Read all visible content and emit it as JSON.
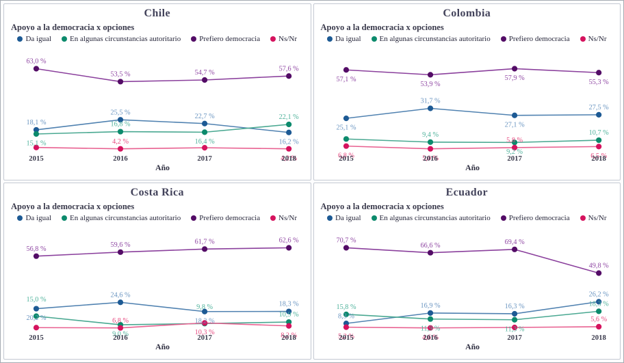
{
  "palette": {
    "da_igual": {
      "line": "#4f81b0",
      "dot": "#1d5a94",
      "label": "#6a95c1"
    },
    "autoritario": {
      "line": "#49a891",
      "dot": "#0c8a6c",
      "label": "#4fb29b"
    },
    "democracia": {
      "line": "#8a3f9c",
      "dot": "#530c66",
      "label": "#8f47a3"
    },
    "nsnr": {
      "line": "#e86090",
      "dot": "#d5135e",
      "label": "#e7487f"
    }
  },
  "series_names": {
    "da_igual": "Da igual",
    "autoritario": "En algunas circunstancias autoritario",
    "democracia": "Prefiero democracia",
    "nsnr": "Ns/Nr"
  },
  "chart_data": [
    {
      "type": "line",
      "title": "Chile",
      "subtitle": "Apoyo a la democracia x opciones",
      "x": [
        "2015",
        "2016",
        "2017",
        "2018"
      ],
      "xlabel": "Año",
      "legend_position": "top",
      "grid": false,
      "series": [
        {
          "key": "democracia",
          "name": "Prefiero democracia",
          "values": [
            63.0,
            53.5,
            54.7,
            57.6
          ],
          "labels": [
            "63,0 %",
            "53,5 %",
            "54,7 %",
            "57,6 %"
          ],
          "label_pos": [
            "a",
            "a",
            "a",
            "a"
          ]
        },
        {
          "key": "da_igual",
          "name": "Da igual",
          "values": [
            18.1,
            25.5,
            22.7,
            16.2
          ],
          "labels": [
            "18,1 %",
            "25,5 %",
            "22,7 %",
            "16,2 %"
          ],
          "label_pos": [
            "a",
            "a",
            "a",
            "b"
          ]
        },
        {
          "key": "autoritario",
          "name": "En algunas circunstancias autoritario",
          "values": [
            15.1,
            16.8,
            16.4,
            22.1
          ],
          "labels": [
            "15,1 %",
            "16,8 %",
            "16,4 %",
            "22,1 %"
          ],
          "label_pos": [
            "b",
            "a",
            "b",
            "a"
          ]
        },
        {
          "key": "nsnr",
          "name": "Ns/Nr",
          "values": [
            5.2,
            4.2,
            5.0,
            4.2
          ],
          "labels": [
            null,
            "4,2 %",
            null,
            "4,2 %"
          ],
          "label_pos": [
            null,
            "a",
            null,
            "b"
          ]
        }
      ]
    },
    {
      "type": "line",
      "title": "Colombia",
      "subtitle": "Apoyo a la democracia x opciones",
      "x": [
        "2015",
        "2016",
        "2017",
        "2018"
      ],
      "xlabel": "Año",
      "legend_position": "top",
      "grid": false,
      "series": [
        {
          "key": "democracia",
          "name": "Prefiero democracia",
          "values": [
            57.1,
            53.9,
            57.9,
            55.3
          ],
          "labels": [
            "57,1 %",
            "53,9 %",
            "57,9 %",
            "55,3 %"
          ],
          "label_pos": [
            "b",
            "b",
            "b",
            "b"
          ]
        },
        {
          "key": "da_igual",
          "name": "Da igual",
          "values": [
            25.1,
            31.7,
            27.1,
            27.5
          ],
          "labels": [
            "25,1 %",
            "31,7 %",
            "27,1 %",
            "27,5 %"
          ],
          "label_pos": [
            "b",
            "a",
            "b",
            "a"
          ]
        },
        {
          "key": "autoritario",
          "name": "En algunas circunstancias autoritario",
          "values": [
            11.5,
            9.4,
            9.2,
            10.7
          ],
          "labels": [
            null,
            "9,4 %",
            "9,2 %",
            "10,7 %"
          ],
          "label_pos": [
            null,
            "a",
            "b",
            "a"
          ]
        },
        {
          "key": "nsnr",
          "name": "Ns/Nr",
          "values": [
            6.8,
            5.0,
            5.8,
            6.5
          ],
          "labels": [
            "6,8 %",
            "5,0 %",
            "5,8 %",
            "6,5 %"
          ],
          "label_pos": [
            "b",
            "b",
            "a",
            "b"
          ]
        }
      ]
    },
    {
      "type": "line",
      "title": "Costa Rica",
      "subtitle": "Apoyo a la democracia x opciones",
      "x": [
        "2015",
        "2016",
        "2017",
        "2018"
      ],
      "xlabel": "Año",
      "legend_position": "top",
      "grid": false,
      "series": [
        {
          "key": "democracia",
          "name": "Prefiero democracia",
          "values": [
            56.8,
            59.6,
            61.7,
            62.6
          ],
          "labels": [
            "56,8 %",
            "59,6 %",
            "61,7 %",
            "62,6 %"
          ],
          "label_pos": [
            "a",
            "a",
            "a",
            "a"
          ]
        },
        {
          "key": "da_igual",
          "name": "Da igual",
          "values": [
            20.2,
            24.6,
            18.2,
            18.3
          ],
          "labels": [
            "20,2 %",
            "24,6 %",
            "18,2 %",
            "18,3 %"
          ],
          "label_pos": [
            "b",
            "a",
            "b",
            "a"
          ]
        },
        {
          "key": "autoritario",
          "name": "En algunas circunstancias autoritario",
          "values": [
            15.0,
            9.0,
            9.8,
            10.9
          ],
          "labels": [
            "15,0 %",
            "9,0 %",
            "9,8 %",
            "10,9 %"
          ],
          "label_pos": [
            "A",
            "b",
            "A",
            "a"
          ]
        },
        {
          "key": "nsnr",
          "name": "Ns/Nr",
          "values": [
            7.0,
            6.8,
            10.3,
            8.2
          ],
          "labels": [
            null,
            "6,8 %",
            "10,3 %",
            "8,2 %"
          ],
          "label_pos": [
            null,
            "a",
            "b",
            "b"
          ]
        }
      ]
    },
    {
      "type": "line",
      "title": "Ecuador",
      "subtitle": "Apoyo a la democracia x opciones",
      "x": [
        "2015",
        "2016",
        "2017",
        "2018"
      ],
      "xlabel": "Año",
      "legend_position": "top",
      "grid": false,
      "series": [
        {
          "key": "democracia",
          "name": "Prefiero democracia",
          "values": [
            70.7,
            66.6,
            69.4,
            49.8
          ],
          "labels": [
            "70,7 %",
            "66,6 %",
            "69,4 %",
            "49,8 %"
          ],
          "label_pos": [
            "a",
            "a",
            "a",
            "a"
          ]
        },
        {
          "key": "da_igual",
          "name": "Da igual",
          "values": [
            8.3,
            16.9,
            16.3,
            26.2
          ],
          "labels": [
            "8,3 %",
            "16,9 %",
            "16,3 %",
            "26,2 %"
          ],
          "label_pos": [
            "a",
            "a",
            "a",
            "a"
          ]
        },
        {
          "key": "autoritario",
          "name": "En algunas circunstancias autoritario",
          "values": [
            15.8,
            11.9,
            11.3,
            18.3
          ],
          "labels": [
            "15,8 %",
            "11,9 %",
            "11,3 %",
            "18,3 %"
          ],
          "label_pos": [
            "a",
            "b",
            "b",
            "a"
          ]
        },
        {
          "key": "nsnr",
          "name": "Ns/Nr",
          "values": [
            5.2,
            4.6,
            5.0,
            5.6
          ],
          "labels": [
            "5,2 %",
            "4,6 %",
            null,
            "5,6 %"
          ],
          "label_pos": [
            "b",
            "b",
            null,
            "a"
          ]
        }
      ]
    }
  ]
}
